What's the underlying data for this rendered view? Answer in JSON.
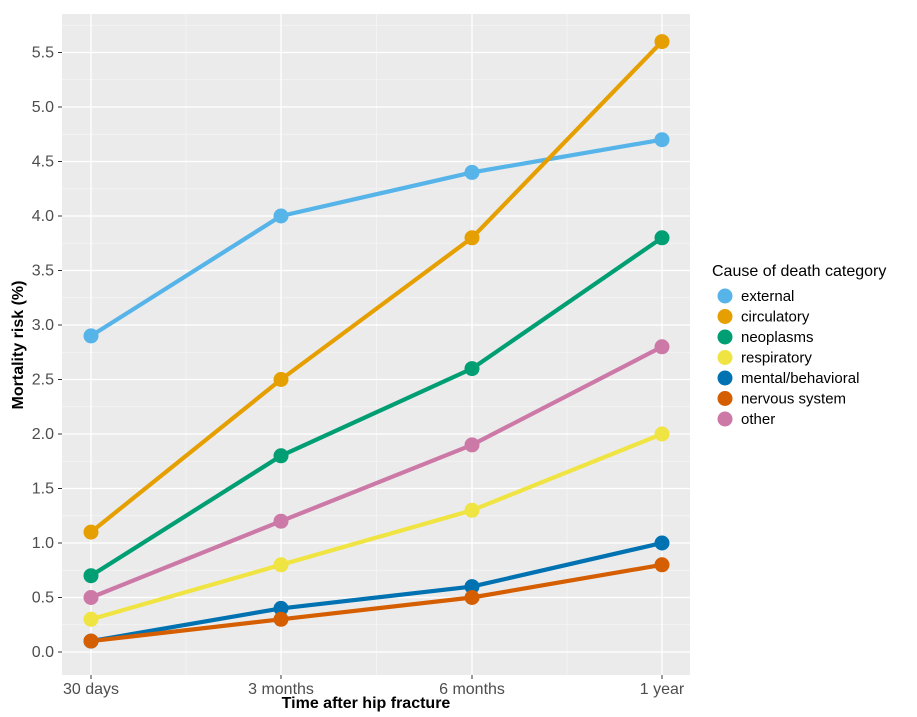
{
  "chart_data": {
    "type": "line",
    "title": "",
    "xlabel": "Time after hip fracture",
    "ylabel": "Mortality risk (%)",
    "categories": [
      "30 days",
      "3 months",
      "6 months",
      "1 year"
    ],
    "ylim": [
      0.0,
      5.7
    ],
    "yticks": [
      "0.0",
      "0.5",
      "1.0",
      "1.5",
      "2.0",
      "2.5",
      "3.0",
      "3.5",
      "4.0",
      "4.5",
      "5.0",
      "5.5"
    ],
    "grid": true,
    "legend": {
      "title": "Cause of death category",
      "placement": "right"
    },
    "series": [
      {
        "name": "external",
        "color": "#56B4E9",
        "values": [
          2.9,
          4.0,
          4.4,
          4.7
        ]
      },
      {
        "name": "circulatory",
        "color": "#E69F00",
        "values": [
          1.1,
          2.5,
          3.8,
          5.6
        ]
      },
      {
        "name": "neoplasms",
        "color": "#009E73",
        "values": [
          0.7,
          1.8,
          2.6,
          3.8
        ]
      },
      {
        "name": "respiratory",
        "color": "#F0E442",
        "values": [
          0.3,
          0.8,
          1.3,
          2.0
        ]
      },
      {
        "name": "mental/behavioral",
        "color": "#0072B2",
        "values": [
          0.1,
          0.4,
          0.6,
          1.0
        ]
      },
      {
        "name": "nervous system",
        "color": "#D55E00",
        "values": [
          0.1,
          0.3,
          0.5,
          0.8
        ]
      },
      {
        "name": "other",
        "color": "#CC79A7",
        "values": [
          0.5,
          1.2,
          1.9,
          2.8
        ]
      }
    ]
  }
}
